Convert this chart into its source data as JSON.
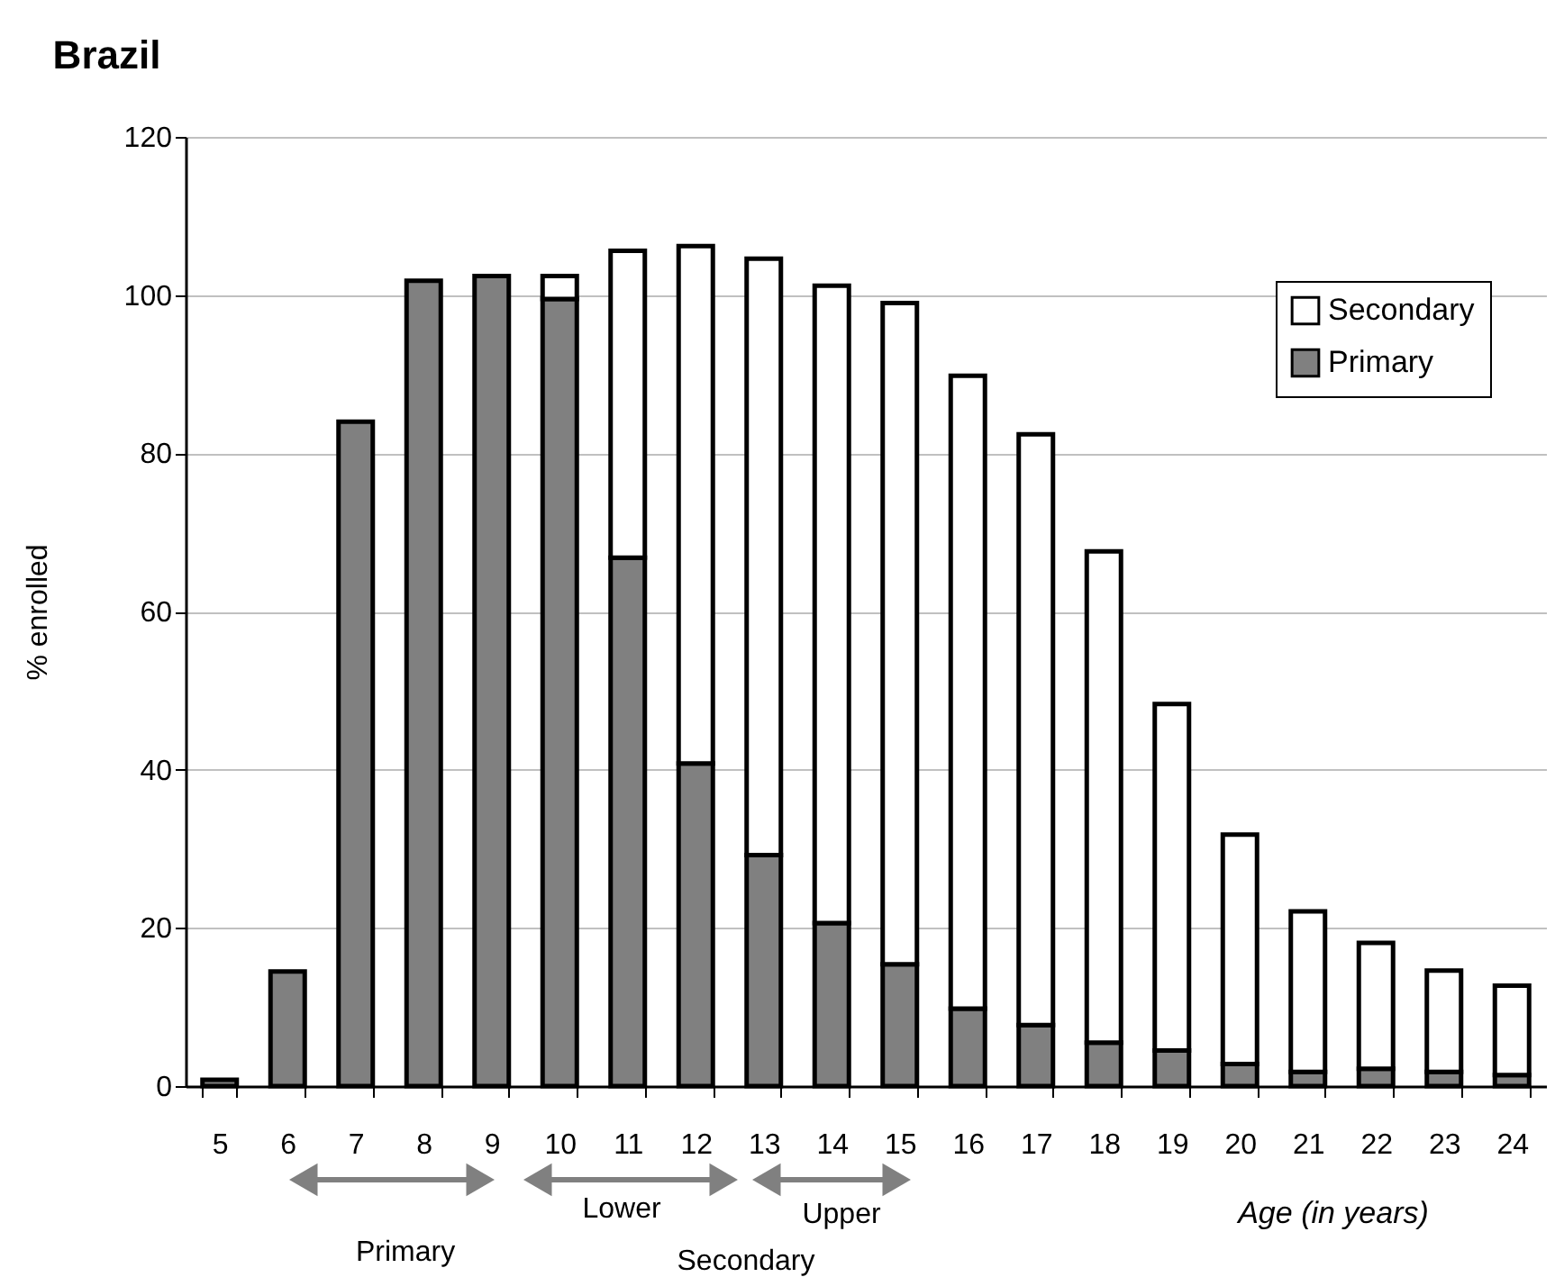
{
  "chart_data": {
    "type": "bar",
    "stacked": true,
    "title": "Brazil",
    "xlabel": "Age (in years)",
    "ylabel": "% enrolled",
    "categories": [
      "5",
      "6",
      "7",
      "8",
      "9",
      "10",
      "11",
      "12",
      "13",
      "14",
      "15",
      "16",
      "17",
      "18",
      "19",
      "20",
      "21",
      "22",
      "23",
      "24"
    ],
    "series": [
      {
        "name": "Primary",
        "color": "#808080",
        "values": [
          0.8,
          14.5,
          84,
          101.8,
          102.4,
          99.5,
          66.8,
          40.8,
          29.2,
          20.6,
          15.4,
          9.8,
          7.7,
          5.5,
          4.5,
          2.8,
          1.8,
          2.2,
          1.8,
          1.4
        ]
      },
      {
        "name": "Secondary",
        "color": "#ffffff",
        "values": [
          null,
          null,
          null,
          null,
          null,
          2.9,
          38.8,
          65.4,
          75.4,
          80.6,
          83.6,
          80,
          74.7,
          62.1,
          43.8,
          29,
          20.3,
          15.9,
          12.8,
          11.3
        ]
      }
    ],
    "annotations": [
      "Primary",
      "Lower",
      "Upper",
      "Secondary"
    ],
    "ylim": [
      0,
      120
    ],
    "yticks": [
      0,
      20,
      40,
      60,
      80,
      100,
      120
    ],
    "grid": "y",
    "legend": "top right"
  }
}
